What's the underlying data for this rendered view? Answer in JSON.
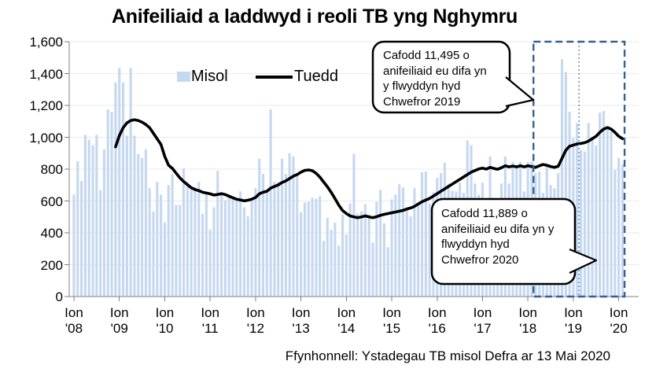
{
  "title": "Anifeiliaid a laddwyd i reoli TB yng Nghymru",
  "source": "Ffynhonnell: Ystadegau TB misol Defra ar 13 Mai 2020",
  "legend": {
    "monthly_label": "Misol",
    "trend_label": "Tuedd"
  },
  "annotations": {
    "callout_2019": {
      "lines": [
        "Cafodd 11,495 o",
        "anifeiliaid eu difa yn",
        "y flwyddyn hyd",
        "Chwefror 2019"
      ]
    },
    "callout_2020": {
      "lines": [
        "Cafodd 11,889 o",
        "anifeiliaid eu difa yn y",
        "flwyddyn hyd",
        "Chwefror 2020"
      ]
    }
  },
  "colors": {
    "bar": "#c5d8f0",
    "trend": "#000000",
    "grid": "#e9e9e9",
    "axis": "#808080",
    "highlight_box": "#366092",
    "divider": "#4a7ebb",
    "text": "#000000"
  },
  "chart_data": {
    "type": "bar+line",
    "title": "Anifeiliaid a laddwyd i reoli TB yng Nghymru",
    "x_start_month": "Ion 2008",
    "x_end_month": "Chwe 2020",
    "x_month_tick_label": "Ion",
    "x_year_tick_labels": [
      "'08",
      "'09",
      "'10",
      "'11",
      "'12",
      "'13",
      "'14",
      "'15",
      "'16",
      "'17",
      "'18",
      "'19",
      "'20"
    ],
    "ylim": [
      0,
      1600
    ],
    "y_ticks": [
      {
        "value": 1600,
        "label": "1,600"
      },
      {
        "value": 1400,
        "label": "1,400"
      },
      {
        "value": 1200,
        "label": "1,200"
      },
      {
        "value": 1000,
        "label": "1,000"
      },
      {
        "value": 800,
        "label": "800"
      },
      {
        "value": 600,
        "label": "600"
      },
      {
        "value": 400,
        "label": "400"
      },
      {
        "value": 200,
        "label": "200"
      },
      {
        "value": 0,
        "label": "0"
      }
    ],
    "grid": true,
    "legend_position": "top-inside",
    "series": [
      {
        "name": "Misol",
        "type": "bar",
        "start_index": 0,
        "values": [
          640,
          850,
          725,
          1015,
          985,
          950,
          1015,
          670,
          925,
          1175,
          1160,
          1345,
          1435,
          1345,
          1010,
          1435,
          1010,
          895,
          870,
          925,
          680,
          535,
          720,
          640,
          465,
          700,
          770,
          575,
          575,
          805,
          720,
          670,
          685,
          720,
          520,
          640,
          420,
          560,
          790,
          640,
          605,
          640,
          620,
          605,
          660,
          560,
          505,
          610,
          680,
          865,
          770,
          665,
          1175,
          720,
          720,
          865,
          770,
          900,
          880,
          770,
          530,
          590,
          595,
          620,
          615,
          630,
          350,
          495,
          420,
          465,
          320,
          515,
          390,
          585,
          895,
          520,
          535,
          580,
          515,
          340,
          595,
          670,
          460,
          310,
          610,
          640,
          705,
          685,
          555,
          505,
          680,
          585,
          780,
          785,
          585,
          655,
          745,
          775,
          840,
          710,
          665,
          660,
          715,
          650,
          980,
          950,
          710,
          640,
          715,
          600,
          880,
          620,
          600,
          710,
          880,
          710,
          845,
          825,
          845,
          660,
          845,
          845,
          775,
          785,
          650,
          825,
          700,
          680,
          775,
          1490,
          1410,
          1160,
          995,
          1090,
          920,
          910,
          1090,
          995,
          950,
          1155,
          1165,
          1065,
          1035,
          795,
          870,
          830
        ]
      },
      {
        "name": "Tuedd",
        "type": "line",
        "start_index": 11,
        "values": [
          940,
          1010,
          1060,
          1090,
          1105,
          1110,
          1105,
          1095,
          1080,
          1060,
          1025,
          990,
          955,
          880,
          825,
          805,
          775,
          745,
          722,
          702,
          683,
          672,
          665,
          655,
          650,
          645,
          637,
          641,
          646,
          640,
          630,
          620,
          611,
          606,
          601,
          605,
          611,
          622,
          645,
          655,
          661,
          681,
          691,
          701,
          716,
          726,
          741,
          756,
          766,
          781,
          792,
          795,
          790,
          774,
          750,
          719,
          689,
          654,
          615,
          574,
          540,
          521,
          506,
          500,
          495,
          500,
          506,
          500,
          495,
          501,
          510,
          516,
          521,
          526,
          531,
          536,
          541,
          550,
          556,
          566,
          581,
          595,
          606,
          616,
          631,
          646,
          661,
          676,
          691,
          706,
          721,
          736,
          751,
          766,
          781,
          791,
          801,
          806,
          800,
          811,
          804,
          799,
          809,
          821,
          814,
          819,
          814,
          821,
          814,
          821,
          816,
          811,
          821,
          829,
          824,
          816,
          811,
          818,
          868,
          918,
          944,
          951,
          958,
          961,
          966,
          976,
          991,
          1006,
          1031,
          1051,
          1061,
          1051,
          1031,
          1006,
          991
        ]
      }
    ],
    "highlight_box": {
      "start_index": 122,
      "end_index": 145,
      "divider_index": 134
    }
  }
}
